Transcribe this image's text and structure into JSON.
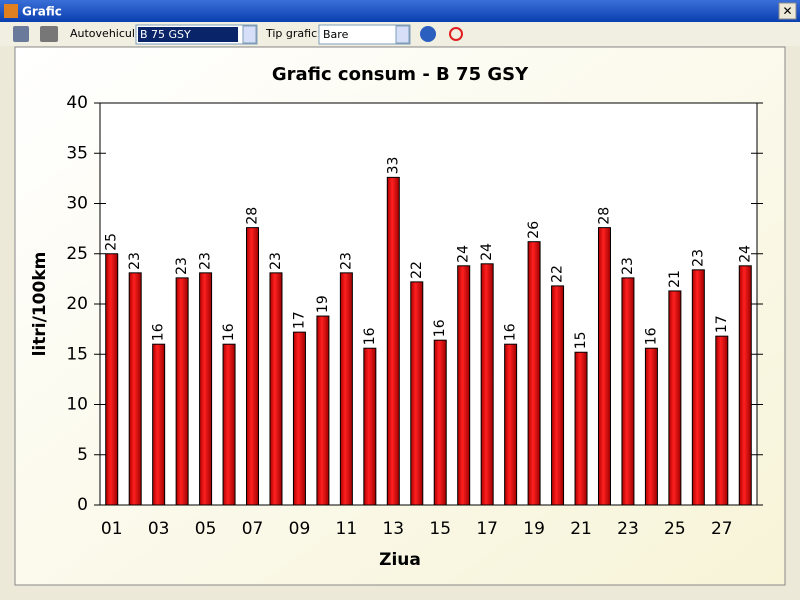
{
  "window": {
    "title": "Grafic"
  },
  "toolbar": {
    "vehicle_label": "Autovehicul:",
    "vehicle_value": "B 75 GSY",
    "chart_type_label": "Tip grafic:",
    "chart_type_value": "Bare"
  },
  "chart_data": {
    "type": "bar",
    "title": "Grafic consum - B 75 GSY",
    "x_label": "Ziua",
    "y_label": "litri/100km",
    "categories": [
      "01",
      null,
      "03",
      null,
      "05",
      null,
      "07",
      null,
      "09",
      null,
      "11",
      null,
      "13",
      null,
      "15",
      null,
      "17",
      null,
      "19",
      null,
      "21",
      null,
      "23",
      null,
      "25",
      null,
      "27",
      null
    ],
    "values": [
      25.0,
      23.1,
      16.0,
      22.6,
      23.1,
      16.0,
      27.6,
      23.1,
      17.2,
      18.8,
      23.1,
      15.6,
      32.6,
      22.2,
      16.4,
      23.8,
      24.0,
      16.0,
      26.2,
      21.8,
      15.2,
      27.6,
      22.6,
      15.6,
      21.3,
      23.4,
      16.8,
      23.8
    ],
    "value_labels": [
      "25",
      "23",
      "16",
      "23",
      "23",
      "16",
      "28",
      "23",
      "17",
      "19",
      "23",
      "16",
      "33",
      "22",
      "16",
      "24",
      "24",
      "16",
      "26",
      "22",
      "15",
      "28",
      "23",
      "16",
      "21",
      "23",
      "17",
      "24"
    ],
    "color": "#e01010",
    "ylim": [
      0,
      40
    ],
    "yticks": [
      0,
      5,
      10,
      15,
      20,
      25,
      30,
      35,
      40
    ],
    "grid": false
  }
}
